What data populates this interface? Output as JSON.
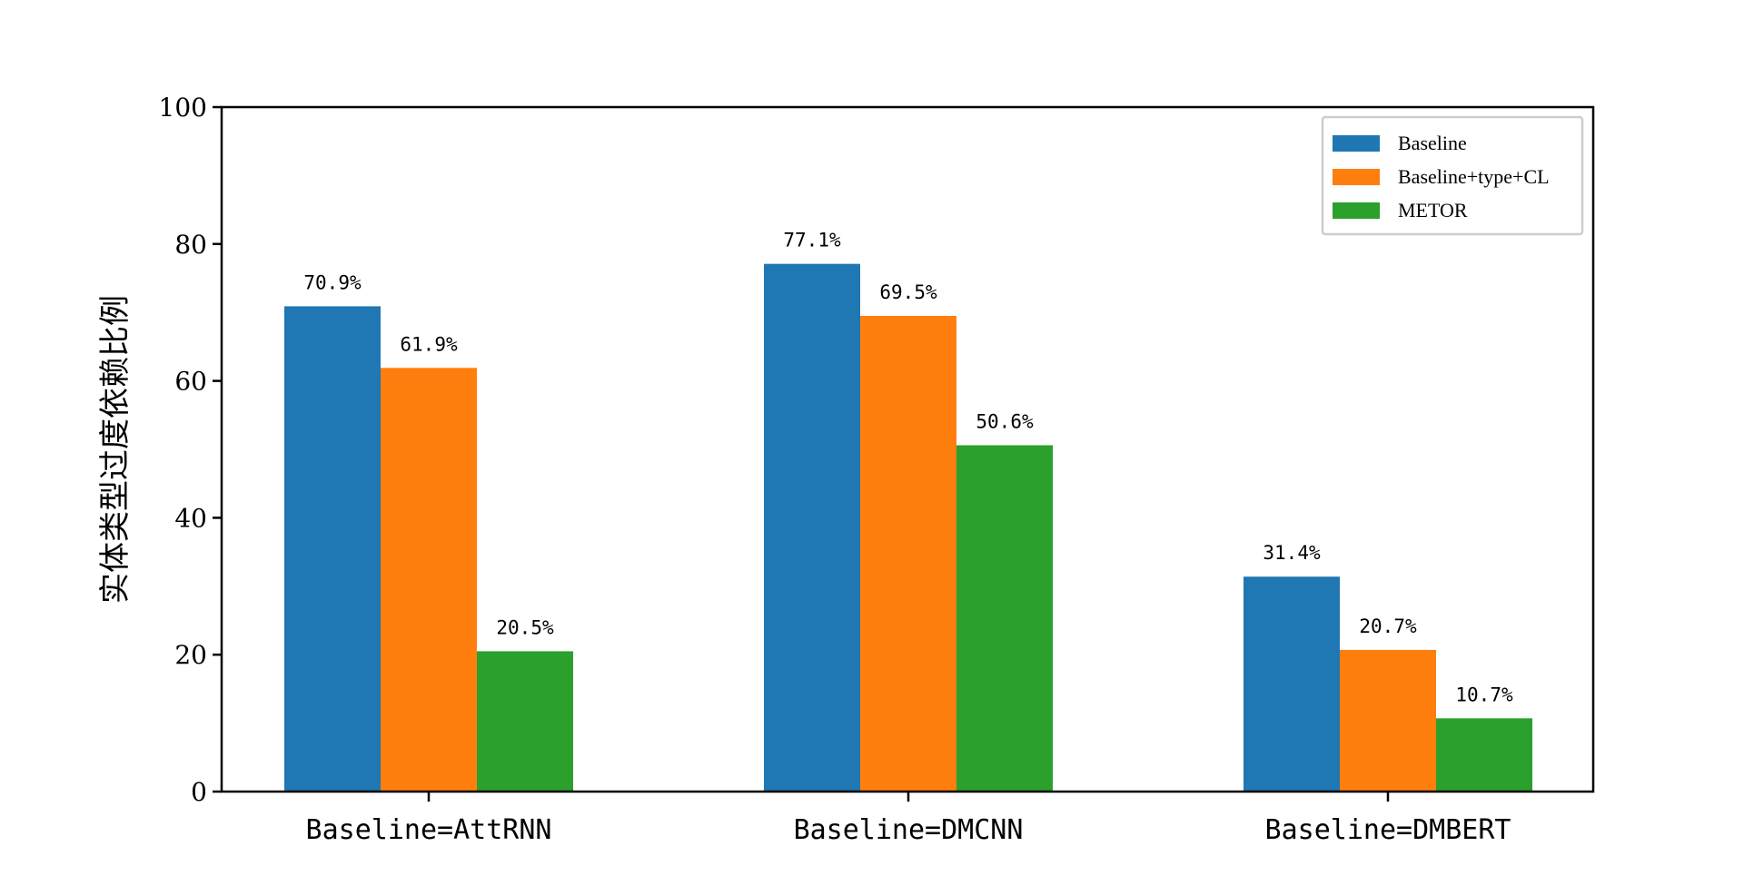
{
  "chart_data": {
    "type": "bar",
    "categories": [
      "Baseline=AttRNN",
      "Baseline=DMCNN",
      "Baseline=DMBERT"
    ],
    "series": [
      {
        "name": "Baseline",
        "values": [
          70.9,
          77.1,
          31.4
        ],
        "labels": [
          "70.9%",
          "77.1%",
          "31.4%"
        ],
        "color": "#1f77b4"
      },
      {
        "name": "Baseline+type+CL",
        "values": [
          61.9,
          69.5,
          20.7
        ],
        "labels": [
          "61.9%",
          "69.5%",
          "20.7%"
        ],
        "color": "#ff7f0e"
      },
      {
        "name": "METOR",
        "values": [
          20.5,
          50.6,
          10.7
        ],
        "labels": [
          "20.5%",
          "50.6%",
          "10.7%"
        ],
        "color": "#2ca02c"
      }
    ],
    "title": "",
    "xlabel": "",
    "ylabel": "实体类型过度依赖比例",
    "ylim": [
      0,
      100
    ],
    "yticks": [
      "0",
      "20",
      "40",
      "60",
      "80",
      "100"
    ],
    "grid": false,
    "legend_position": "top-right"
  }
}
